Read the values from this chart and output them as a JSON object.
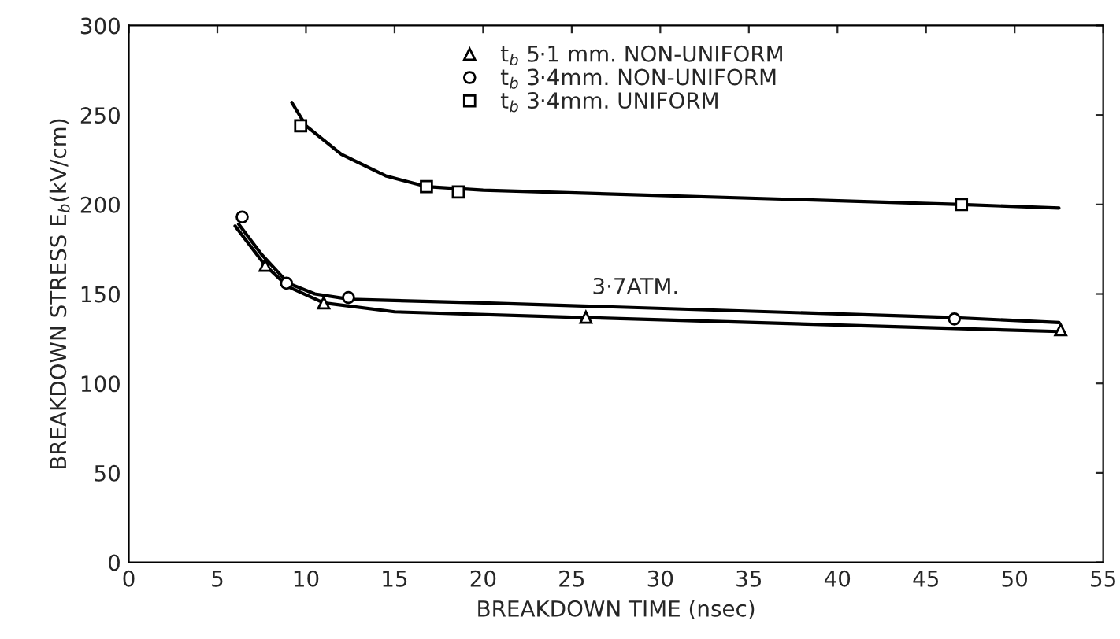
{
  "chart_data": {
    "type": "scatter",
    "xlabel": "BREAKDOWN TIME (nsec)",
    "ylabel": "BREAKDOWN STRESS E$_{b}$(kV/cm)",
    "xlim": [
      0,
      55
    ],
    "xticks": [
      0,
      5,
      10,
      15,
      20,
      25,
      30,
      35,
      40,
      45,
      50,
      55
    ],
    "ylim": [
      0,
      300
    ],
    "yticks": [
      0,
      50,
      100,
      150,
      200,
      250,
      300
    ],
    "grid": false,
    "legend": "top",
    "line_style": "solid",
    "annotations": [
      "3·7ATM."
    ],
    "series": [
      {
        "name": "t$_{b}$ 5·1 mm. NON-UNIFORM",
        "marker": "triangle",
        "color": "#000000",
        "x": [
          7.7,
          11.0,
          25.8,
          52.6
        ],
        "values": [
          166,
          145,
          137,
          130
        ]
      },
      {
        "name": "t$_{b}$ 3·4mm. NON-UNIFORM",
        "marker": "circle",
        "color": "#000000",
        "x": [
          6.4,
          8.9,
          12.4,
          46.6
        ],
        "values": [
          193,
          156,
          148,
          136
        ]
      },
      {
        "name": "t$_{b}$ 3·4mm. UNIFORM",
        "marker": "square",
        "color": "#000000",
        "x": [
          9.7,
          16.8,
          18.6,
          47.0
        ],
        "values": [
          244,
          210,
          207,
          200
        ]
      },
      {
        "type": "line",
        "marker": "none",
        "color": "#000000",
        "x": [
          6.0,
          7.7,
          9.0,
          11.0,
          15.0,
          25.0,
          52.5
        ],
        "values": [
          188,
          166,
          154,
          145,
          140,
          137,
          129
        ]
      },
      {
        "type": "line",
        "marker": "none",
        "color": "#000000",
        "x": [
          6.2,
          7.5,
          9.0,
          10.5,
          12.5,
          20.0,
          46.0,
          52.5
        ],
        "values": [
          189,
          172,
          156,
          150,
          147,
          145,
          137,
          134
        ]
      },
      {
        "type": "line",
        "marker": "none",
        "color": "#000000",
        "x": [
          9.2,
          10.0,
          12.0,
          14.5,
          16.8,
          20.0,
          47.0,
          52.5
        ],
        "values": [
          257,
          244,
          228,
          216,
          210,
          208,
          200,
          198
        ]
      }
    ]
  }
}
